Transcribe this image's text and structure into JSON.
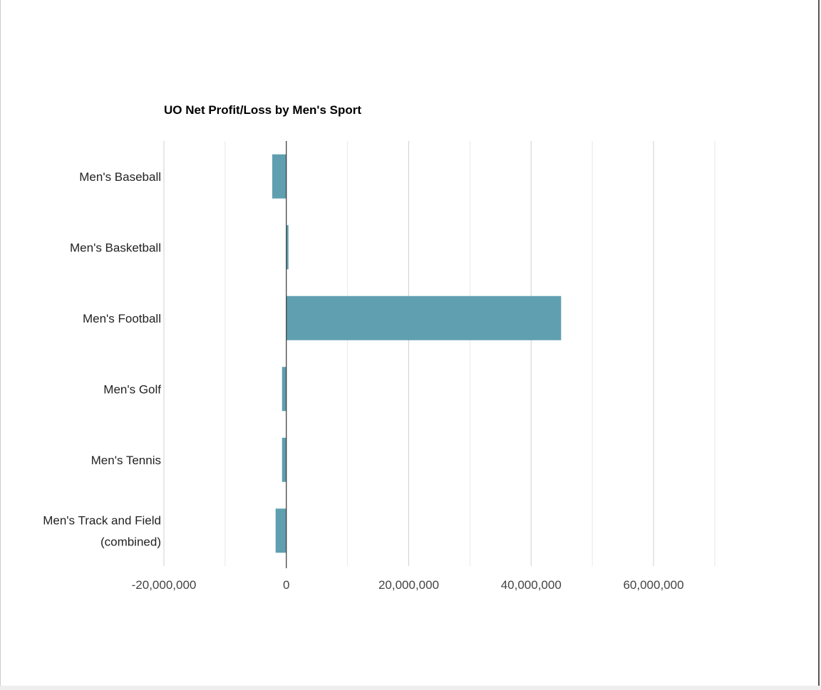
{
  "chart_data": {
    "type": "bar",
    "orientation": "horizontal",
    "title": "UO Net Profit/Loss by Men's Sport",
    "categories": [
      [
        "Men's Baseball"
      ],
      [
        "Men's Basketball"
      ],
      [
        "Men's Football"
      ],
      [
        "Men's Golf"
      ],
      [
        "Men's Tennis"
      ],
      [
        "Men's Track and Field",
        "(combined)"
      ]
    ],
    "values": [
      -2300000,
      350000,
      44900000,
      -700000,
      -700000,
      -1750000
    ],
    "xlim": [
      -20000000,
      70000000
    ],
    "xticks": [
      -20000000,
      0,
      20000000,
      40000000,
      60000000
    ],
    "xtick_labels": [
      "-20,000,000",
      "0",
      "20,000,000",
      "40,000,000",
      "60,000,000"
    ],
    "minor_gridlines_every": 10000000,
    "grid": true,
    "legend": "none",
    "xlabel": "",
    "ylabel": "",
    "colors": {
      "bar": "#5f9fb0",
      "grid": "#d0d0d0",
      "zero_line": "#333333"
    }
  }
}
